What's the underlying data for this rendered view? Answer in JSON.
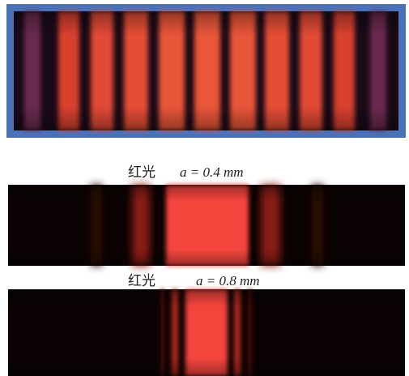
{
  "panels": [
    {
      "light": "红光",
      "formula": "a = 0.4 mm"
    },
    {
      "light": "红光",
      "formula": "a = 0.8 mm"
    }
  ]
}
